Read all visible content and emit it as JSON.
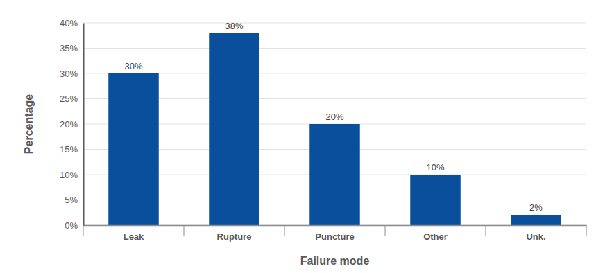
{
  "chart_data": {
    "type": "bar",
    "x_label": "Failure mode",
    "y_label": "Percentage",
    "categories": [
      "Leak",
      "Rupture",
      "Puncture",
      "Other",
      "Unk."
    ],
    "values": [
      30,
      38,
      20,
      10,
      2
    ],
    "value_labels": [
      "30%",
      "38%",
      "20%",
      "10%",
      "2%"
    ],
    "color": "#0a4f9c",
    "ylim": [
      0,
      40
    ],
    "yticks": [
      {
        "value": 0,
        "label": "0%"
      },
      {
        "value": 5,
        "label": "5%"
      },
      {
        "value": 10,
        "label": "10%"
      },
      {
        "value": 15,
        "label": "15%"
      },
      {
        "value": 20,
        "label": "20%"
      },
      {
        "value": 25,
        "label": "25%"
      },
      {
        "value": 30,
        "label": "30%"
      },
      {
        "value": 35,
        "label": "35%"
      },
      {
        "value": 40,
        "label": "40%"
      }
    ],
    "grid": true,
    "data_labels": true
  }
}
